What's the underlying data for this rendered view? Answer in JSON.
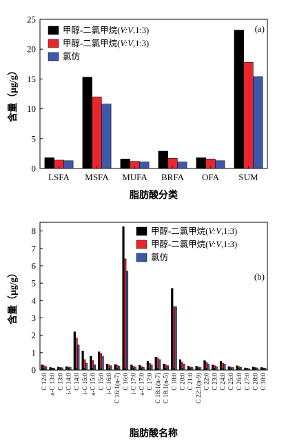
{
  "colors": {
    "series1": "#000000",
    "series2": "#e8262d",
    "series3": "#3d57a9"
  },
  "chart_data": [
    {
      "type": "bar",
      "panel_label": "(a)",
      "ylabel": "含量（μg/g）",
      "xlabel": "脂肪酸分类",
      "ylim": [
        0,
        25
      ],
      "yticks": [
        0,
        5,
        10,
        15,
        20,
        25
      ],
      "legend_position": "top-left",
      "categories": [
        "LSFA",
        "MSFA",
        "MUFA",
        "BRFA",
        "OFA",
        "SUM"
      ],
      "series": [
        {
          "name": "甲醇-二氯甲烷(V:V,1:3)",
          "values": [
            1.8,
            15.3,
            1.6,
            2.9,
            1.8,
            23.2
          ]
        },
        {
          "name": "甲醇-二氯甲烷(V:V,1:3)",
          "values": [
            1.4,
            12.0,
            1.2,
            1.7,
            1.6,
            17.8
          ]
        },
        {
          "name": "氯仿",
          "values": [
            1.3,
            10.8,
            1.1,
            1.1,
            1.3,
            15.4
          ]
        }
      ]
    },
    {
      "type": "bar",
      "panel_label": "(b)",
      "ylabel": "含量（μg/g）",
      "xlabel": "脂肪酸名称",
      "ylim": [
        0,
        8.5
      ],
      "yticks": [
        0,
        1,
        2,
        3,
        4,
        5,
        6,
        7,
        8
      ],
      "legend_position": "top-right",
      "categories": [
        "C 12:0",
        "a-C 13:0",
        "C 13:0",
        "i-C 14:0",
        "C 14:0",
        "i-C 15:0",
        "a-C 15:0",
        "C 15:0",
        "i-C 16:0",
        "C 16:1(n-7)",
        "C 16:0",
        "i-C 17:0",
        "a-C 17:0",
        "C 17:0",
        "C 18:1(n-7)",
        "C 18:1(n-5)",
        "C 18:0",
        "C 20:0",
        "C 21:0",
        "C 22:1(n-9)",
        "C 22:0",
        "C 23:0",
        "C 24:0",
        "C 25:0",
        "C 26:0",
        "C 27:0",
        "C 28:0",
        "C 30:0"
      ],
      "series": [
        {
          "name": "甲醇-二氯甲烷(V:V,1:3)",
          "values": [
            0.3,
            0.15,
            0.18,
            0.2,
            2.2,
            1.1,
            0.8,
            1.05,
            0.35,
            0.32,
            8.25,
            0.3,
            0.28,
            0.5,
            0.75,
            0.35,
            4.7,
            0.6,
            0.22,
            0.22,
            0.55,
            0.3,
            0.5,
            0.2,
            0.25,
            0.12,
            0.18,
            0.15
          ]
        },
        {
          "name": "甲醇-二氯甲烷(V:V,1:3)",
          "values": [
            0.25,
            0.12,
            0.15,
            0.18,
            1.85,
            0.6,
            0.55,
            0.95,
            0.3,
            0.28,
            6.4,
            0.22,
            0.2,
            0.38,
            0.7,
            0.3,
            3.65,
            0.45,
            0.18,
            0.18,
            0.45,
            0.25,
            0.4,
            0.18,
            0.2,
            0.1,
            0.15,
            0.12
          ]
        },
        {
          "name": "氯仿",
          "values": [
            0.2,
            0.1,
            0.13,
            0.15,
            1.45,
            0.4,
            0.3,
            0.8,
            0.25,
            0.22,
            5.7,
            0.18,
            0.15,
            0.3,
            0.6,
            0.25,
            3.65,
            0.35,
            0.15,
            0.15,
            0.35,
            0.2,
            0.35,
            0.15,
            0.15,
            0.08,
            0.12,
            0.1
          ]
        }
      ]
    }
  ]
}
